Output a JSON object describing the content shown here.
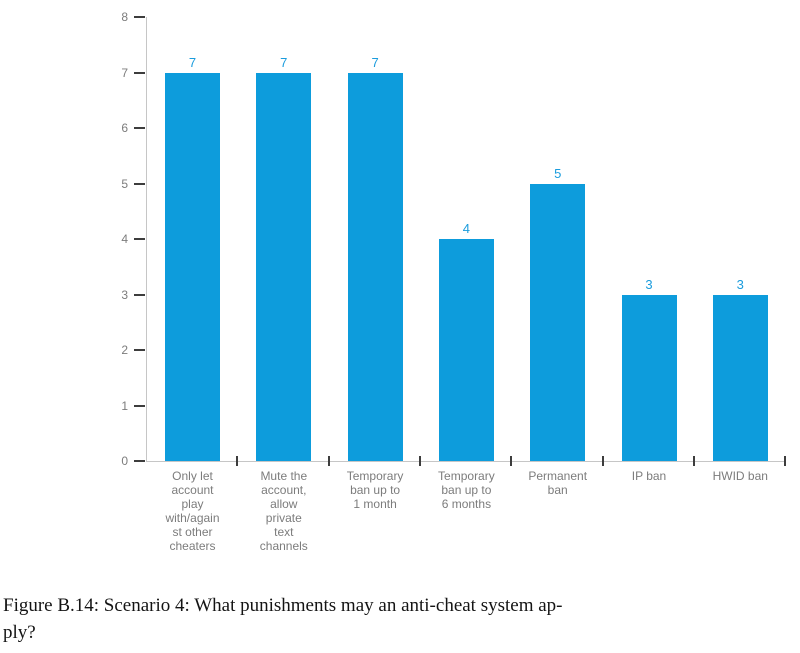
{
  "figure": {
    "caption": "Figure B.14: Scenario 4: What punishments may an anti-cheat system ap-\nply?"
  },
  "chart_data": {
    "type": "bar",
    "title": "",
    "xlabel": "",
    "ylabel": "",
    "categories": [
      "Only let\naccount\nplay\nwith/again\nst other\ncheaters",
      "Mute the\naccount,\nallow\nprivate\ntext\nchannels",
      "Temporary\nban up to\n1 month",
      "Temporary\nban up to\n6 months",
      "Permanent\nban",
      "IP ban",
      "HWID ban"
    ],
    "values": [
      7,
      7,
      7,
      4,
      5,
      3,
      3
    ],
    "value_labels": [
      "7",
      "7",
      "7",
      "4",
      "5",
      "3",
      "3"
    ],
    "ylim": [
      0,
      8
    ],
    "yticks": [
      0,
      1,
      2,
      3,
      4,
      5,
      6,
      7,
      8
    ],
    "grid": false,
    "legend": "none",
    "bar_color": "#0d9cdc",
    "value_label_color": "#1a9cdd",
    "axis_label_color": "#7c7c7c",
    "axis_line_color": "#c6c6c6",
    "tick_mark_color": "#3d3d3d"
  }
}
